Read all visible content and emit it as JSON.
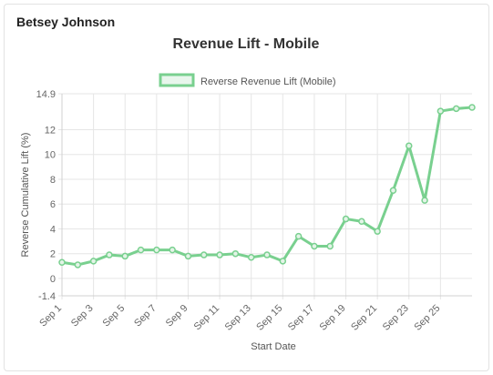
{
  "brand_label": "Betsey Johnson",
  "chart_data": {
    "type": "line",
    "title": "Revenue Lift - Mobile",
    "xlabel": "Start Date",
    "ylabel": "Reverse Cumulative Lift (%)",
    "ylim": [
      -1.4,
      14.9
    ],
    "yticks": [
      "14.9",
      "12",
      "10",
      "8",
      "6",
      "4",
      "2",
      "0",
      "-1.4"
    ],
    "x": [
      "Sep 1",
      "Sep 2",
      "Sep 3",
      "Sep 4",
      "Sep 5",
      "Sep 6",
      "Sep 7",
      "Sep 8",
      "Sep 9",
      "Sep 10",
      "Sep 11",
      "Sep 12",
      "Sep 13",
      "Sep 14",
      "Sep 15",
      "Sep 16",
      "Sep 17",
      "Sep 18",
      "Sep 19",
      "Sep 20",
      "Sep 21",
      "Sep 22",
      "Sep 23",
      "Sep 24",
      "Sep 25",
      "Sep 26",
      "Sep 27"
    ],
    "xtick_labels": [
      "Sep 1",
      "Sep 3",
      "Sep 5",
      "Sep 7",
      "Sep 9",
      "Sep 11",
      "Sep 13",
      "Sep 15",
      "Sep 17",
      "Sep 19",
      "Sep 21",
      "Sep 23",
      "Sep 25"
    ],
    "legend_position": "top",
    "grid": true,
    "series": [
      {
        "name": "Reverse Revenue Lift (Mobile)",
        "color": "#79d08f",
        "values": [
          1.3,
          1.1,
          1.4,
          1.9,
          1.8,
          2.3,
          2.3,
          2.3,
          1.8,
          1.9,
          1.9,
          2.0,
          1.7,
          1.9,
          1.4,
          3.4,
          2.6,
          2.6,
          4.8,
          4.6,
          3.8,
          7.1,
          10.7,
          6.3,
          13.5,
          13.7,
          13.8
        ]
      }
    ]
  }
}
